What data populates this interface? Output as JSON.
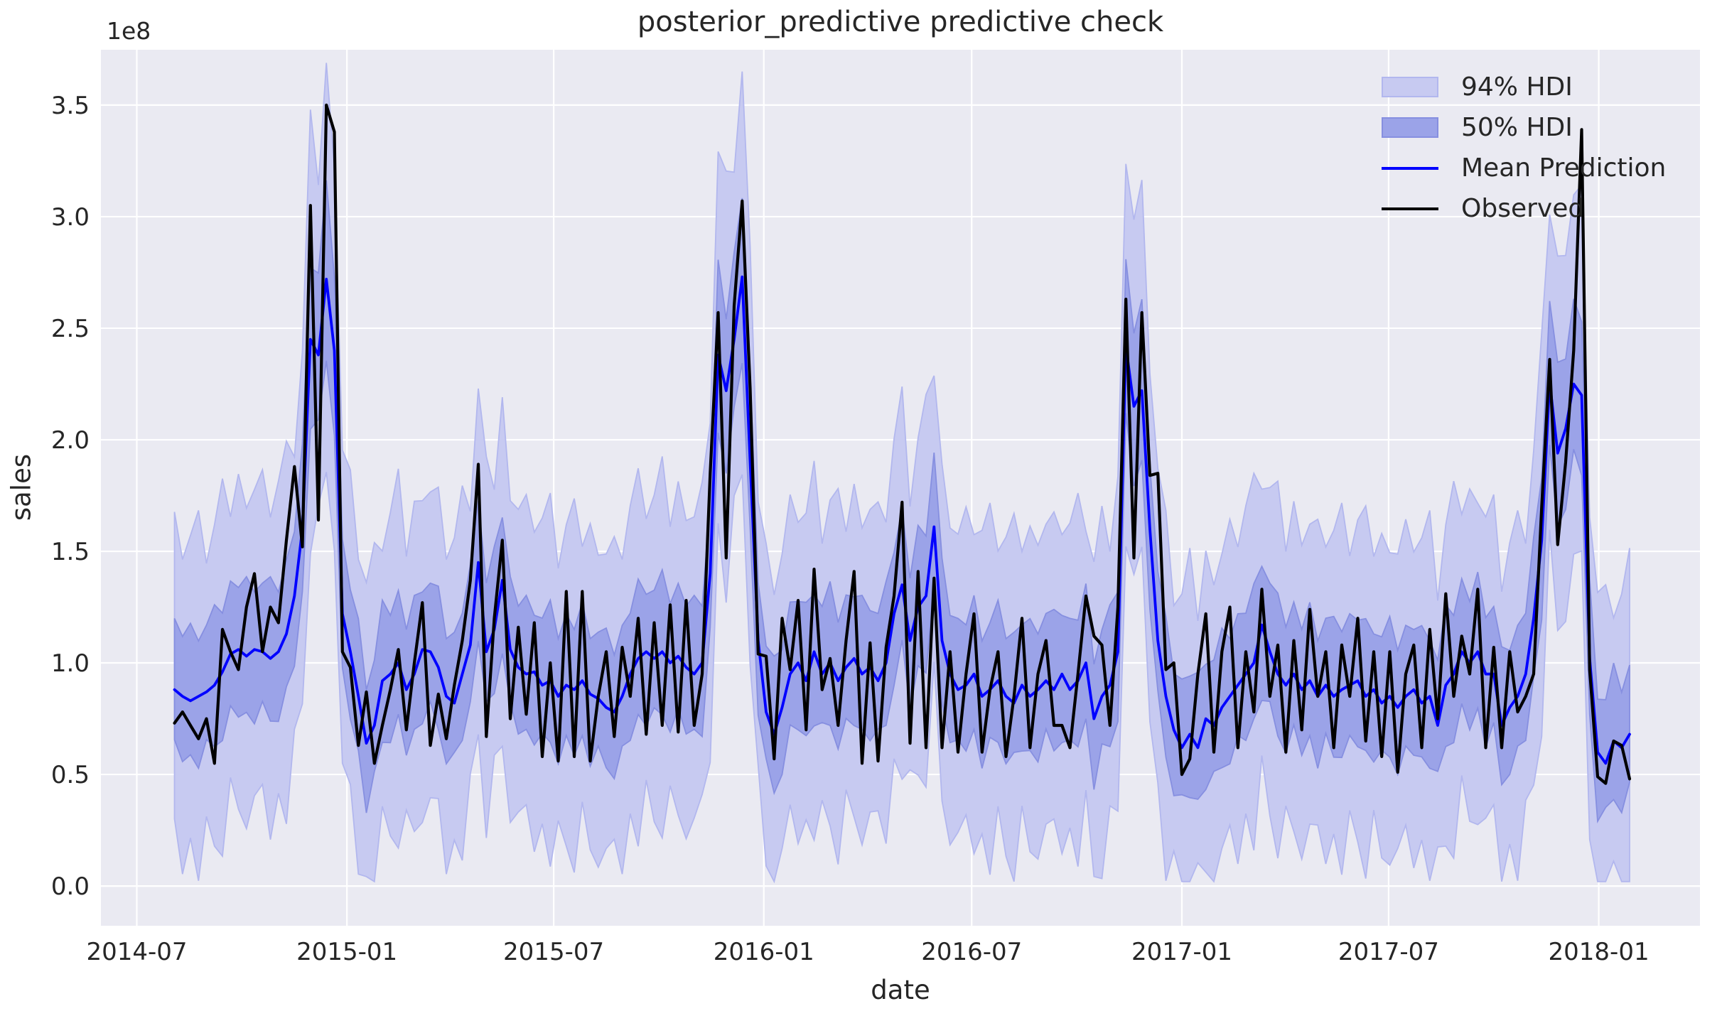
{
  "figure": {
    "title": "posterior_predictive predictive check",
    "background": "#ffffff",
    "axes_background": "#eaeaf2",
    "grid_color": "#ffffff",
    "text_color": "#262626",
    "y_offset_text": "1e8"
  },
  "axes": {
    "xlabel": "date",
    "ylabel": "sales"
  },
  "legend": {
    "position": "upper right",
    "items": [
      {
        "label": "94% HDI",
        "type": "patch",
        "fill": "#c7caf1",
        "edge": "#b2b7ee"
      },
      {
        "label": "50% HDI",
        "type": "patch",
        "fill": "#9ba3e8",
        "edge": "#868fe0"
      },
      {
        "label": "Mean Prediction",
        "type": "line",
        "color": "#0000ff"
      },
      {
        "label": "Observed",
        "type": "line",
        "color": "#000000"
      }
    ]
  },
  "chart_data": {
    "type": "line",
    "title": "posterior_predictive predictive check",
    "xlabel": "date",
    "ylabel": "sales",
    "y_unit_multiplier": "1e8",
    "x_start_date": "2014-08-03",
    "x_freq_days": 7,
    "n_points": 183,
    "xlim_weeks": [
      -9.2,
      190.8
    ],
    "ylim": [
      -0.178,
      3.748
    ],
    "grid": true,
    "legend_position": "upper right",
    "x_ticks": [
      {
        "label": "2014-07",
        "week": -4.71
      },
      {
        "label": "2015-01",
        "week": 21.57
      },
      {
        "label": "2015-07",
        "week": 47.43
      },
      {
        "label": "2016-01",
        "week": 73.71
      },
      {
        "label": "2016-07",
        "week": 99.71
      },
      {
        "label": "2017-01",
        "week": 126.0
      },
      {
        "label": "2017-07",
        "week": 151.86
      },
      {
        "label": "2018-01",
        "week": 178.14
      }
    ],
    "y_ticks": [
      {
        "label": "0.0",
        "value": 0.0
      },
      {
        "label": "0.5",
        "value": 0.5
      },
      {
        "label": "1.0",
        "value": 1.0
      },
      {
        "label": "1.5",
        "value": 1.5
      },
      {
        "label": "2.0",
        "value": 2.0
      },
      {
        "label": "2.5",
        "value": 2.5
      },
      {
        "label": "3.0",
        "value": 3.0
      },
      {
        "label": "3.5",
        "value": 3.5
      }
    ],
    "series": [
      {
        "name": "Mean Prediction",
        "type": "line",
        "color": "#0000ff",
        "line_width": 3.8,
        "values": [
          0.88,
          0.85,
          0.83,
          0.85,
          0.87,
          0.9,
          0.96,
          1.04,
          1.06,
          1.03,
          1.06,
          1.05,
          1.02,
          1.05,
          1.13,
          1.3,
          1.6,
          2.45,
          2.38,
          2.72,
          2.4,
          1.22,
          1.05,
          0.85,
          0.64,
          0.72,
          0.92,
          0.95,
          1.0,
          0.88,
          0.95,
          1.06,
          1.05,
          0.98,
          0.85,
          0.82,
          0.95,
          1.08,
          1.45,
          1.05,
          1.15,
          1.37,
          1.06,
          0.98,
          0.95,
          0.96,
          0.9,
          0.92,
          0.85,
          0.9,
          0.88,
          0.92,
          0.86,
          0.84,
          0.8,
          0.78,
          0.85,
          0.95,
          1.02,
          1.05,
          1.02,
          1.05,
          1.0,
          1.03,
          0.98,
          0.95,
          1.0,
          1.4,
          2.38,
          2.22,
          2.45,
          2.73,
          1.9,
          1.1,
          0.78,
          0.68,
          0.8,
          0.95,
          1.0,
          0.92,
          1.05,
          0.95,
          1.0,
          0.92,
          0.98,
          1.02,
          0.95,
          0.98,
          0.92,
          1.0,
          1.22,
          1.35,
          1.1,
          1.25,
          1.3,
          1.61,
          1.1,
          0.95,
          0.88,
          0.9,
          0.95,
          0.85,
          0.88,
          0.92,
          0.85,
          0.82,
          0.9,
          0.85,
          0.88,
          0.92,
          0.88,
          0.95,
          0.88,
          0.92,
          1.0,
          0.75,
          0.85,
          0.9,
          1.05,
          2.42,
          2.15,
          2.22,
          1.6,
          1.1,
          0.85,
          0.7,
          0.62,
          0.68,
          0.62,
          0.75,
          0.72,
          0.8,
          0.85,
          0.9,
          0.95,
          1.0,
          1.17,
          1.05,
          0.95,
          0.9,
          0.95,
          0.88,
          0.92,
          0.85,
          0.9,
          0.85,
          0.88,
          0.9,
          0.92,
          0.85,
          0.88,
          0.82,
          0.85,
          0.8,
          0.85,
          0.88,
          0.82,
          0.85,
          0.72,
          0.9,
          0.95,
          1.05,
          1.0,
          1.05,
          0.95,
          0.95,
          0.72,
          0.8,
          0.85,
          0.95,
          1.2,
          1.55,
          2.26,
          1.94,
          2.05,
          2.25,
          2.2,
          1.02,
          0.6,
          0.55,
          0.65,
          0.62,
          0.68
        ]
      },
      {
        "name": "Observed",
        "type": "line",
        "color": "#000000",
        "line_width": 4.2,
        "values": [
          0.73,
          0.78,
          0.72,
          0.66,
          0.75,
          0.55,
          1.15,
          1.05,
          0.97,
          1.25,
          1.4,
          1.05,
          1.25,
          1.18,
          1.55,
          1.88,
          1.52,
          3.05,
          1.64,
          3.5,
          3.38,
          1.05,
          0.98,
          0.63,
          0.87,
          0.55,
          0.72,
          0.88,
          1.06,
          0.7,
          1.0,
          1.27,
          0.63,
          0.86,
          0.66,
          0.9,
          1.1,
          1.37,
          1.89,
          0.67,
          1.2,
          1.55,
          0.75,
          1.16,
          0.77,
          1.18,
          0.58,
          1.0,
          0.56,
          1.32,
          0.58,
          1.32,
          0.56,
          0.85,
          1.05,
          0.67,
          1.07,
          0.85,
          1.2,
          0.68,
          1.18,
          0.72,
          1.26,
          0.69,
          1.28,
          0.72,
          0.95,
          1.85,
          2.57,
          1.47,
          2.6,
          3.07,
          2.23,
          1.04,
          1.03,
          0.57,
          1.2,
          0.97,
          1.28,
          0.7,
          1.42,
          0.88,
          1.02,
          0.72,
          1.1,
          1.41,
          0.55,
          1.09,
          0.56,
          1.07,
          1.3,
          1.72,
          0.64,
          1.41,
          0.62,
          1.38,
          0.62,
          1.05,
          0.6,
          0.95,
          1.22,
          0.6,
          0.88,
          1.05,
          0.58,
          0.85,
          1.2,
          0.62,
          0.95,
          1.1,
          0.72,
          0.72,
          0.62,
          0.95,
          1.3,
          1.12,
          1.08,
          0.72,
          1.25,
          2.63,
          1.47,
          2.57,
          1.84,
          1.85,
          0.97,
          1.0,
          0.5,
          0.57,
          0.95,
          1.22,
          0.6,
          1.05,
          1.25,
          0.62,
          1.05,
          0.78,
          1.33,
          0.85,
          1.08,
          0.6,
          1.1,
          0.7,
          1.24,
          0.85,
          1.05,
          0.62,
          1.08,
          0.85,
          1.2,
          0.65,
          1.05,
          0.58,
          1.05,
          0.51,
          0.95,
          1.08,
          0.62,
          1.15,
          0.75,
          1.31,
          0.85,
          1.12,
          0.95,
          1.33,
          0.62,
          1.07,
          0.62,
          1.05,
          0.78,
          0.85,
          0.95,
          1.7,
          2.36,
          1.53,
          1.9,
          2.4,
          3.39,
          0.97,
          0.49,
          0.46,
          0.65,
          0.63,
          0.48
        ]
      }
    ],
    "bands": [
      {
        "name": "94% HDI",
        "fill": "#c7caf1",
        "edge": "#b2b7ee",
        "reference_series": "Mean Prediction",
        "upper": {
          "base": 0.6,
          "mu_coef": 0.11,
          "noise": [
            0.1,
            -0.08,
            0.05,
            0.14,
            -0.12,
            0.02,
            0.16,
            -0.1,
            0.07,
            -0.05,
            0.0
          ]
        },
        "lower": {
          "base": 0.6,
          "mu_coef": 0.09,
          "floor": 0.02,
          "noise": [
            -0.1,
            0.12,
            -0.06,
            0.15,
            -0.12,
            0.04,
            0.14,
            -0.14,
            0.02,
            0.08,
            -0.04
          ]
        }
      },
      {
        "name": "50% HDI",
        "fill": "#9ba3e8",
        "edge": "#868fe0",
        "reference_series": "Mean Prediction",
        "upper": {
          "base": 0.26,
          "mu_coef": 0.045,
          "noise": [
            0.02,
            -0.03,
            0.05,
            -0.05,
            0.0,
            0.06,
            -0.04
          ]
        },
        "lower": {
          "base": 0.22,
          "mu_coef": 0.05,
          "floor": 0.05,
          "noise": [
            -0.04,
            0.03,
            -0.02,
            0.06,
            -0.05,
            0.01,
            0.04
          ]
        }
      }
    ]
  }
}
